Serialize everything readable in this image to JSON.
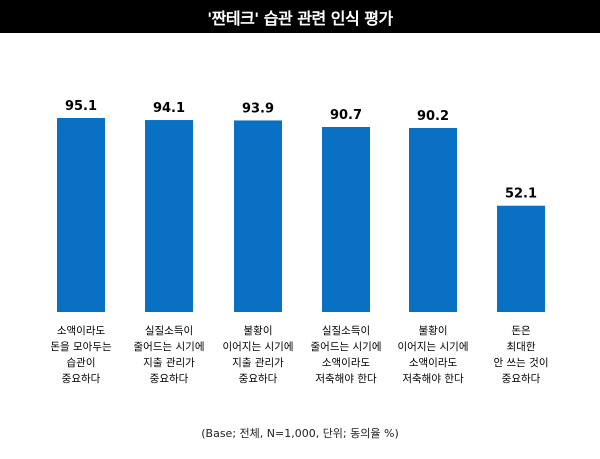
{
  "title": "'짠테크' 습관 관련 인식 평가",
  "note": "(Base; 전체, N=1,000, 단위; 동의율 %)",
  "colors": {
    "bar": "#0A70C4",
    "title_bg": "#000000",
    "title_fg": "#FFFFFF"
  },
  "chart_data": {
    "type": "bar",
    "title": "'짠테크' 습관 관련 인식 평가",
    "categories": [
      [
        "소액이라도",
        "돈을 모아두는",
        "습관이",
        "중요하다"
      ],
      [
        "실질소득이",
        "줄어드는 시기에",
        "지출 관리가",
        "중요하다"
      ],
      [
        "불황이",
        "이어지는 시기에",
        "지출 관리가",
        "중요하다"
      ],
      [
        "실질소득이",
        "줄어드는 시기에",
        "소액이라도",
        "저축해야 한다"
      ],
      [
        "불황이",
        "이어지는 시기에",
        "소액이라도",
        "저축해야 한다"
      ],
      [
        "돈은",
        "최대한",
        "안 쓰는 것이",
        "중요하다"
      ]
    ],
    "values": [
      95.1,
      94.1,
      93.9,
      90.7,
      90.2,
      52.1
    ],
    "value_labels": [
      "95.1",
      "94.1",
      "93.9",
      "90.7",
      "90.2",
      "52.1"
    ],
    "ylim": [
      0,
      100
    ],
    "grid": false,
    "legend": "none"
  }
}
